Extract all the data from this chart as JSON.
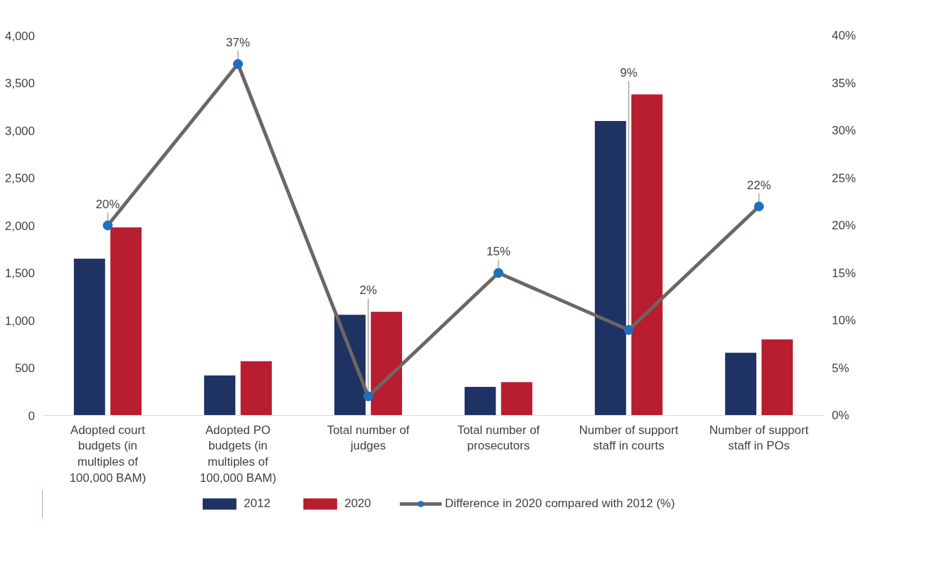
{
  "chart_data": {
    "type": "bar",
    "categories": [
      "Adopted court budgets (in multiples of 100,000 BAM)",
      "Adopted PO budgets (in multiples of 100,000 BAM)",
      "Total number of judges",
      "Total number of prosecutors",
      "Number of support staff in courts",
      "Number of support staff in POs"
    ],
    "series": [
      {
        "name": "2012",
        "color": "#1f3264",
        "values": [
          1650,
          420,
          1060,
          300,
          3100,
          660
        ]
      },
      {
        "name": "2020",
        "color": "#b81e30",
        "values": [
          1980,
          570,
          1090,
          350,
          3380,
          800
        ]
      },
      {
        "name": "Difference in 2020 compared with 2012 (%)",
        "type": "line",
        "axis": "y2",
        "color": "#6d6665",
        "values": [
          20,
          37,
          2,
          15,
          9,
          22
        ],
        "value_labels": [
          "20%",
          "37%",
          "2%",
          "15%",
          "9%",
          "22%"
        ]
      }
    ],
    "ylim": [
      0,
      4000
    ],
    "yticks": [
      0,
      500,
      {
        "value": 1000,
        "label": "1,000"
      },
      {
        "value": 1500,
        "label": "1,500"
      },
      {
        "value": 2000,
        "label": "2,000"
      },
      {
        "value": 2500,
        "label": "2,500"
      },
      {
        "value": 3000,
        "label": "3,000"
      },
      {
        "value": 3500,
        "label": "3,500"
      },
      {
        "value": 4000,
        "label": "4,000"
      }
    ],
    "y2lim": [
      0,
      40
    ],
    "y2ticks": [
      {
        "value": 0,
        "label": "0%"
      },
      {
        "value": 5,
        "label": "5%"
      },
      {
        "value": 10,
        "label": "10%"
      },
      {
        "value": 15,
        "label": "15%"
      },
      {
        "value": 20,
        "label": "20%"
      },
      {
        "value": 25,
        "label": "25%"
      },
      {
        "value": 30,
        "label": "30%"
      },
      {
        "value": 35,
        "label": "35%"
      },
      {
        "value": 40,
        "label": "40%"
      }
    ],
    "marker": "circle",
    "grid": false,
    "legend": "bottom"
  }
}
